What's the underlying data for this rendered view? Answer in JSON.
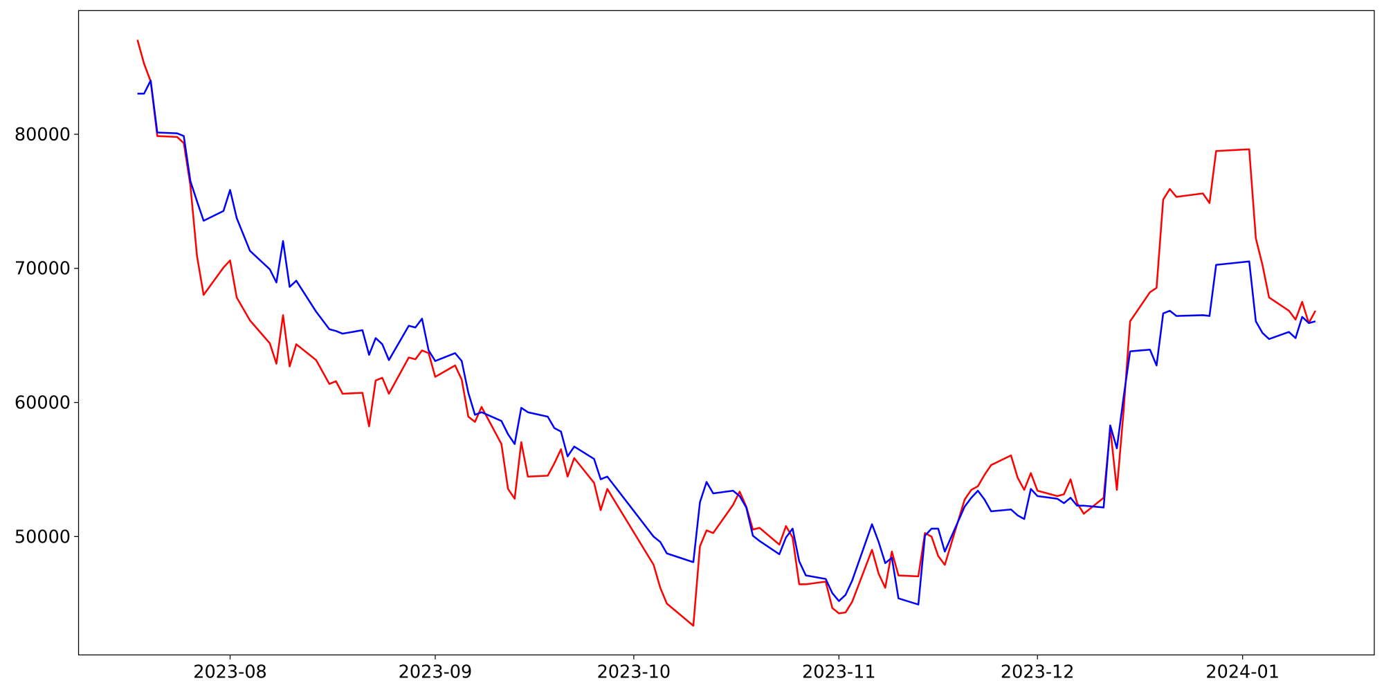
{
  "chart_data": {
    "type": "line",
    "x": [
      19556,
      19557,
      19558,
      19559,
      19562,
      19563,
      19564,
      19565,
      19566,
      19569,
      19570,
      19571,
      19573,
      19576,
      19577,
      19578,
      19579,
      19580,
      19583,
      19585,
      19586,
      19587,
      19590,
      19591,
      19592,
      19593,
      19594,
      19597,
      19598,
      19599,
      19600,
      19601,
      19604,
      19605,
      19606,
      19607,
      19608,
      19611,
      19612,
      19613,
      19614,
      19615,
      19618,
      19619,
      19620,
      19621,
      19622,
      19625,
      19626,
      19627,
      19634,
      19635,
      19636,
      19640,
      19641,
      19642,
      19643,
      19646,
      19647,
      19648,
      19649,
      19650,
      19653,
      19654,
      19655,
      19656,
      19657,
      19660,
      19661,
      19662,
      19663,
      19664,
      19667,
      19668,
      19669,
      19670,
      19671,
      19674,
      19675,
      19676,
      19677,
      19678,
      19681,
      19682,
      19683,
      19684,
      19685,
      19688,
      19689,
      19690,
      19691,
      19692,
      19695,
      19696,
      19697,
      19698,
      19699,
      19702,
      19703,
      19704,
      19705,
      19706,
      19709,
      19710,
      19711,
      19712,
      19713,
      19717,
      19718,
      19719,
      19724,
      19725,
      19726,
      19727,
      19730,
      19731,
      19732,
      19733,
      19734
    ],
    "series": [
      {
        "color": "#ff0000",
        "values": [
          87040,
          85260,
          83950,
          79870,
          79800,
          79340,
          76180,
          70920,
          68020,
          70060,
          70590,
          67830,
          66120,
          64410,
          62890,
          66510,
          62690,
          64340,
          63160,
          61380,
          61580,
          60650,
          60720,
          58220,
          61640,
          61840,
          60650,
          63350,
          63220,
          63880,
          63680,
          61910,
          62760,
          61710,
          58940,
          58550,
          59670,
          56900,
          53550,
          52820,
          57040,
          54470,
          54540,
          55460,
          56510,
          54470,
          55850,
          54010,
          51970,
          53550,
          47890,
          46180,
          45000,
          43350,
          49270,
          50460,
          50260,
          52360,
          53350,
          52230,
          50520,
          50650,
          49400,
          50780,
          49930,
          46440,
          46440,
          46640,
          44670,
          44270,
          44340,
          45130,
          49010,
          47230,
          46180,
          48880,
          47100,
          47030,
          50260,
          49990,
          48550,
          47890,
          52760,
          53480,
          53750,
          54600,
          55330,
          56050,
          54400,
          53480,
          54730,
          53420,
          53020,
          53150,
          54270,
          52490,
          51700,
          52890,
          58090,
          53480,
          59270,
          66050,
          68220,
          68550,
          75130,
          75920,
          75330,
          75590,
          74870,
          78750,
          78880,
          72240,
          70260,
          67830,
          66840,
          66180,
          67500,
          65920,
          66840
        ]
      },
      {
        "color": "#0000ff",
        "values": [
          83030,
          83030,
          84010,
          80130,
          80070,
          79870,
          76510,
          75000,
          73550,
          74280,
          75850,
          73750,
          71310,
          69930,
          68950,
          72040,
          68620,
          69080,
          66770,
          65460,
          65330,
          65130,
          65390,
          63550,
          64800,
          64340,
          63160,
          65720,
          65590,
          66250,
          63880,
          63090,
          63680,
          63090,
          60720,
          59080,
          59270,
          58620,
          57630,
          56900,
          59600,
          59270,
          58940,
          58090,
          57830,
          55980,
          56710,
          55790,
          54270,
          54470,
          49990,
          49600,
          48740,
          48090,
          52560,
          54070,
          53220,
          53420,
          53020,
          52170,
          50060,
          49670,
          48680,
          49930,
          50590,
          48150,
          47100,
          46840,
          45780,
          45190,
          45650,
          46710,
          50920,
          49600,
          48020,
          48420,
          45390,
          44930,
          50060,
          50590,
          50590,
          48880,
          52230,
          52890,
          53420,
          52760,
          51880,
          52020,
          51580,
          51310,
          53550,
          53020,
          52820,
          52490,
          52890,
          52300,
          52300,
          52170,
          58290,
          56580,
          60330,
          63810,
          63940,
          62760,
          66640,
          66840,
          66450,
          66510,
          66450,
          70260,
          70520,
          66050,
          65190,
          64730,
          65260,
          64800,
          66380,
          65920,
          66050
        ]
      }
    ],
    "xlim": [
      19547.1,
      19742.9
    ],
    "xticks": [
      {
        "value": 19570,
        "label": "2023-08"
      },
      {
        "value": 19601,
        "label": "2023-09"
      },
      {
        "value": 19631,
        "label": "2023-10"
      },
      {
        "value": 19662,
        "label": "2023-11"
      },
      {
        "value": 19692,
        "label": "2023-12"
      },
      {
        "value": 19723,
        "label": "2024-01"
      }
    ],
    "ylim": [
      41171,
      89224
    ],
    "yticks": [
      50000,
      60000,
      70000,
      80000
    ]
  }
}
